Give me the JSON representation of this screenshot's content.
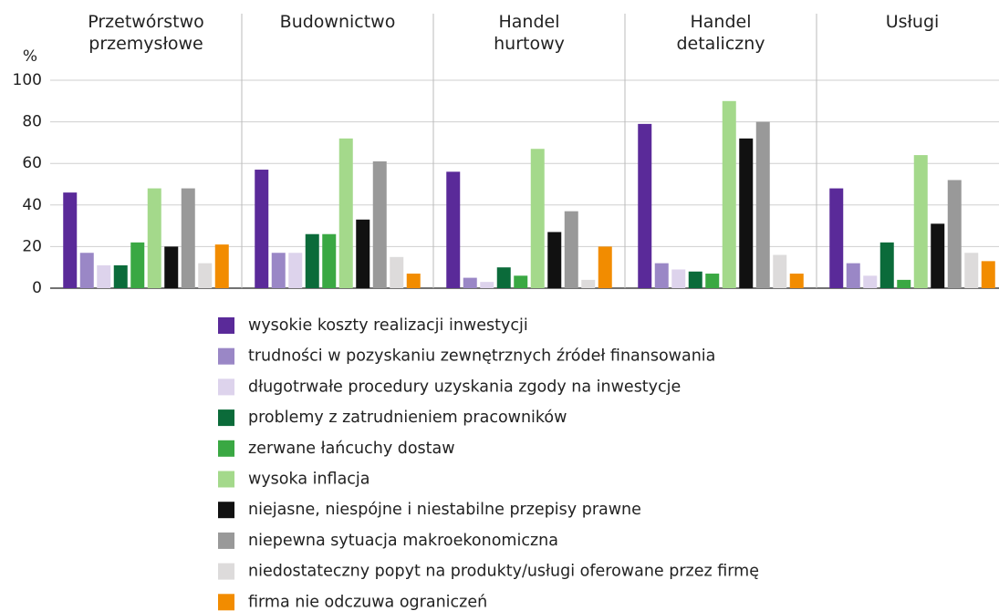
{
  "chart_data": {
    "type": "bar",
    "y_label": "%",
    "categories": [
      "Przetwórstwo\nprzemysłowe",
      "Budownictwo",
      "Handel\nhurtowy",
      "Handel\ndetaliczny",
      "Usługi"
    ],
    "ylim": [
      0,
      100
    ],
    "yticks": [
      0,
      20,
      40,
      60,
      80,
      100
    ],
    "grid": true,
    "series": [
      {
        "name": "wysokie koszty realizacji inwestycji",
        "color": "#5a2a99",
        "values": [
          46,
          57,
          56,
          79,
          48
        ]
      },
      {
        "name": "trudności w pozyskaniu zewnętrznych źródeł finansowania",
        "color": "#9a87c6",
        "values": [
          17,
          17,
          5,
          12,
          12
        ]
      },
      {
        "name": "długotrwałe procedury uzyskania zgody na inwestycje",
        "color": "#ddd3ec",
        "values": [
          11,
          17,
          3,
          9,
          6
        ]
      },
      {
        "name": "problemy z zatrudnieniem pracowników",
        "color": "#0b6b3a",
        "values": [
          11,
          26,
          10,
          8,
          22
        ]
      },
      {
        "name": "zerwane łańcuchy dostaw",
        "color": "#3aa843",
        "values": [
          22,
          26,
          6,
          7,
          4
        ]
      },
      {
        "name": "wysoka inflacja",
        "color": "#a4d98b",
        "values": [
          48,
          72,
          67,
          90,
          64
        ]
      },
      {
        "name": "niejasne, niespójne i niestabilne przepisy prawne",
        "color": "#111111",
        "values": [
          20,
          33,
          27,
          72,
          31
        ]
      },
      {
        "name": "niepewna sytuacja makroekonomiczna",
        "color": "#999999",
        "values": [
          48,
          61,
          37,
          80,
          52
        ]
      },
      {
        "name": "niedostateczny popyt na produkty/usługi oferowane przez firmę",
        "color": "#dddbdb",
        "values": [
          12,
          15,
          4,
          16,
          17
        ]
      },
      {
        "name": "firma nie odczuwa ograniczeń",
        "color": "#f28c00",
        "values": [
          21,
          7,
          20,
          7,
          13
        ]
      }
    ]
  }
}
